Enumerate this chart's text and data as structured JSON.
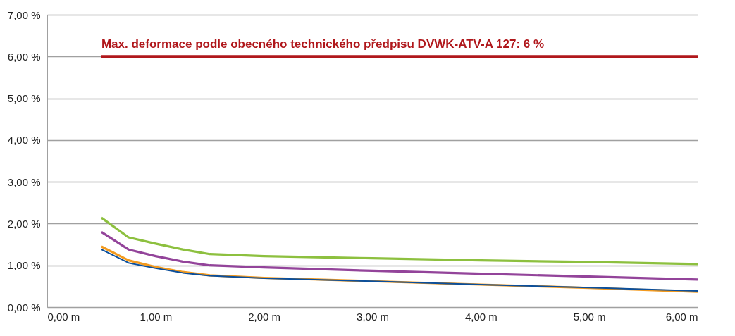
{
  "chart_data": {
    "type": "line",
    "x": [
      0.5,
      0.75,
      1.0,
      1.25,
      1.5,
      2,
      3,
      4,
      5,
      6
    ],
    "series": [
      {
        "color": "#8dc03f",
        "values": [
          2.14,
          1.67,
          1.52,
          1.38,
          1.27,
          1.22,
          1.17,
          1.12,
          1.08,
          1.03
        ]
      },
      {
        "color": "#93449a",
        "values": [
          1.8,
          1.38,
          1.22,
          1.09,
          1.0,
          0.95,
          0.87,
          0.8,
          0.73,
          0.66
        ]
      },
      {
        "color": "#f39a1e",
        "values": [
          1.45,
          1.12,
          0.96,
          0.84,
          0.76,
          0.7,
          0.62,
          0.54,
          0.46,
          0.37
        ]
      },
      {
        "color": "#0b4f9c",
        "values": [
          1.38,
          1.06,
          0.93,
          0.82,
          0.75,
          0.69,
          0.62,
          0.54,
          0.47,
          0.39
        ]
      },
      {
        "color": "#b0171b",
        "x": [
          0.5,
          6
        ],
        "values": [
          6,
          6
        ]
      }
    ],
    "annotations": [
      {
        "text": "Max. deformace podle obecného technického předpisu DVWK-ATV-A 127: 6 %",
        "x": 0.5,
        "y": 6
      }
    ],
    "xlim": [
      0,
      6
    ],
    "ylim": [
      0,
      7
    ],
    "xticks": [
      {
        "value": 0,
        "label": "0,00 m"
      },
      {
        "value": 1,
        "label": "1,00 m"
      },
      {
        "value": 2,
        "label": "2,00 m"
      },
      {
        "value": 3,
        "label": "3,00 m"
      },
      {
        "value": 4,
        "label": "4,00 m"
      },
      {
        "value": 5,
        "label": "5,00 m"
      },
      {
        "value": 6,
        "label": "6,00 m"
      }
    ],
    "yticks": [
      {
        "value": 0,
        "label": "0,00 %"
      },
      {
        "value": 1,
        "label": "1,00 %"
      },
      {
        "value": 2,
        "label": "2,00 %"
      },
      {
        "value": 3,
        "label": "3,00 %"
      },
      {
        "value": 4,
        "label": "4,00 %"
      },
      {
        "value": 5,
        "label": "5,00 %"
      },
      {
        "value": 6,
        "label": "6,00 %"
      },
      {
        "value": 7,
        "label": "7,00 %"
      }
    ],
    "grid": "y",
    "line_style": "solid"
  }
}
